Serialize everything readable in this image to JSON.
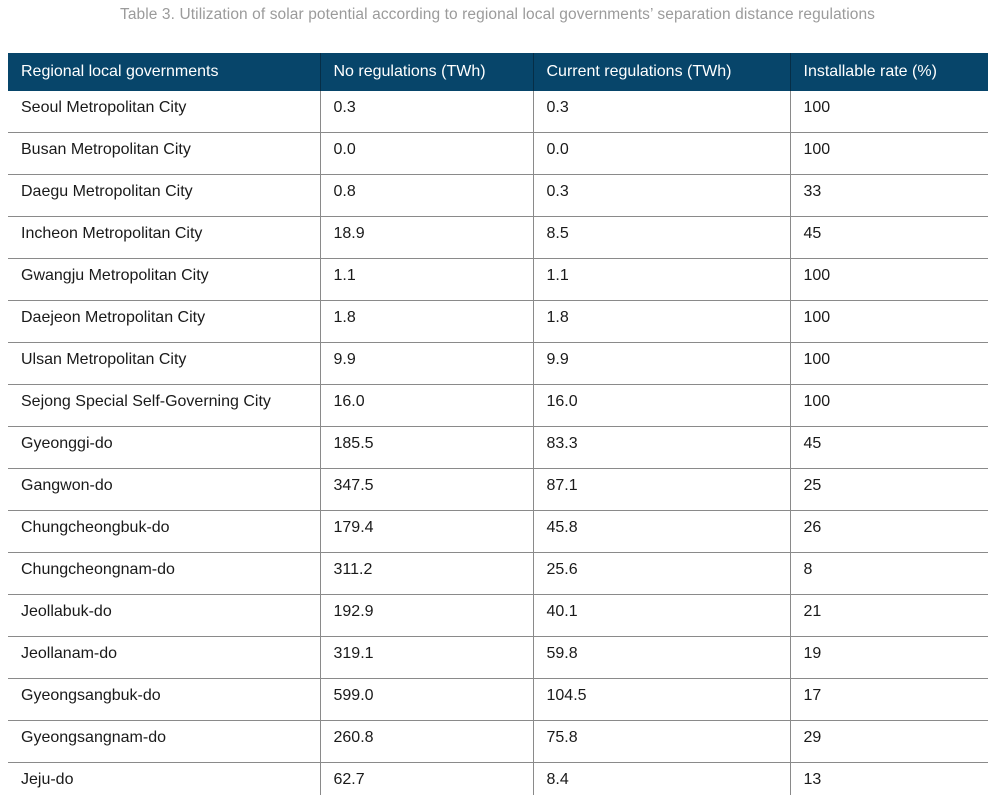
{
  "title": "Table 3. Utilization of solar potential according to regional local governments’ separation distance regulations",
  "colors": {
    "header_bg": "#07456A",
    "header_text": "#ffffff",
    "row_border": "#8a8a8a",
    "body_text": "#1a1a1a",
    "caption_text": "#9b9b9b"
  },
  "table": {
    "columns": [
      "Regional local governments",
      "No regulations (TWh)",
      "Current regulations (TWh)",
      "Installable rate (%)"
    ],
    "rows": [
      {
        "region": "Seoul Metropolitan City",
        "no_regulations_twh": "0.3",
        "current_regulations_twh": "0.3",
        "installable_rate_pct": "100"
      },
      {
        "region": "Busan Metropolitan City",
        "no_regulations_twh": "0.0",
        "current_regulations_twh": "0.0",
        "installable_rate_pct": "100"
      },
      {
        "region": "Daegu Metropolitan City",
        "no_regulations_twh": "0.8",
        "current_regulations_twh": "0.3",
        "installable_rate_pct": "33"
      },
      {
        "region": "Incheon Metropolitan City",
        "no_regulations_twh": "18.9",
        "current_regulations_twh": "8.5",
        "installable_rate_pct": "45"
      },
      {
        "region": "Gwangju Metropolitan City",
        "no_regulations_twh": "1.1",
        "current_regulations_twh": "1.1",
        "installable_rate_pct": "100"
      },
      {
        "region": "Daejeon Metropolitan City",
        "no_regulations_twh": "1.8",
        "current_regulations_twh": "1.8",
        "installable_rate_pct": "100"
      },
      {
        "region": "Ulsan Metropolitan City",
        "no_regulations_twh": "9.9",
        "current_regulations_twh": "9.9",
        "installable_rate_pct": "100"
      },
      {
        "region": "Sejong Special Self-Governing City",
        "no_regulations_twh": "16.0",
        "current_regulations_twh": "16.0",
        "installable_rate_pct": "100"
      },
      {
        "region": "Gyeonggi-do",
        "no_regulations_twh": "185.5",
        "current_regulations_twh": "83.3",
        "installable_rate_pct": "45"
      },
      {
        "region": "Gangwon-do",
        "no_regulations_twh": "347.5",
        "current_regulations_twh": "87.1",
        "installable_rate_pct": "25"
      },
      {
        "region": "Chungcheongbuk-do",
        "no_regulations_twh": "179.4",
        "current_regulations_twh": "45.8",
        "installable_rate_pct": "26"
      },
      {
        "region": "Chungcheongnam-do",
        "no_regulations_twh": "311.2",
        "current_regulations_twh": "25.6",
        "installable_rate_pct": "8"
      },
      {
        "region": "Jeollabuk-do",
        "no_regulations_twh": "192.9",
        "current_regulations_twh": "40.1",
        "installable_rate_pct": "21"
      },
      {
        "region": "Jeollanam-do",
        "no_regulations_twh": "319.1",
        "current_regulations_twh": "59.8",
        "installable_rate_pct": "19"
      },
      {
        "region": "Gyeongsangbuk-do",
        "no_regulations_twh": "599.0",
        "current_regulations_twh": "104.5",
        "installable_rate_pct": "17"
      },
      {
        "region": "Gyeongsangnam-do",
        "no_regulations_twh": "260.8",
        "current_regulations_twh": "75.8",
        "installable_rate_pct": "29"
      },
      {
        "region": "Jeju-do",
        "no_regulations_twh": "62.7",
        "current_regulations_twh": "8.4",
        "installable_rate_pct": "13"
      }
    ]
  }
}
